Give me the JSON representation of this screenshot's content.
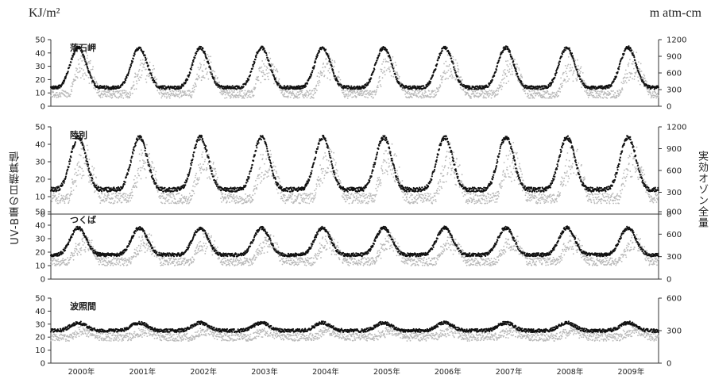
{
  "units": {
    "left": "KJ/m²",
    "right": "m atm-cm"
  },
  "axis_titles": {
    "left": "UV-B量の日積算値",
    "right": "実効オゾン全量"
  },
  "colors": {
    "uvb": "#b8b8b8",
    "ozone": "#111111"
  },
  "chart_data": [
    {
      "type": "scatter",
      "title": "落石岬",
      "xlim": [
        2000,
        2009.95
      ],
      "ylim_left": [
        0,
        50
      ],
      "ylim_right": [
        0,
        1200
      ],
      "left_ticks": [
        "0",
        "10",
        "20",
        "30",
        "40",
        "50"
      ],
      "right_ticks": [
        "0",
        "300",
        "600",
        "900",
        "1200"
      ],
      "series": [
        {
          "axis": "left",
          "description_free": true,
          "baseline": 14,
          "amp": 30,
          "peak": 0.3
        },
        {
          "axis": "right",
          "baseline": 350,
          "amp": 800,
          "peak": 0.5
        }
      ]
    },
    {
      "type": "scatter",
      "title": "陸別",
      "xlim": [
        2000,
        2009.95
      ],
      "ylim_left": [
        0,
        50
      ],
      "ylim_right": [
        0,
        1200
      ],
      "left_ticks": [
        "0",
        "10",
        "20",
        "30",
        "40",
        "50"
      ],
      "right_ticks": [
        "0",
        "300",
        "600",
        "900",
        "1200"
      ],
      "series": [
        {
          "axis": "left",
          "baseline": 14,
          "amp": 30,
          "peak": 0.3
        },
        {
          "axis": "right",
          "baseline": 350,
          "amp": 800,
          "peak": 0.5
        }
      ]
    },
    {
      "type": "scatter",
      "title": "つくば",
      "xlim": [
        2000,
        2009.95
      ],
      "ylim_left": [
        0,
        50
      ],
      "ylim_right": [
        0,
        900
      ],
      "left_ticks": [
        "0",
        "10",
        "20",
        "30",
        "40",
        "50"
      ],
      "right_ticks": [
        "0",
        "300",
        "600",
        "900"
      ],
      "series": [
        {
          "axis": "left",
          "baseline": 18,
          "amp": 20,
          "peak": 0.3
        },
        {
          "axis": "right",
          "baseline": 300,
          "amp": 500,
          "peak": 0.5
        }
      ]
    },
    {
      "type": "scatter",
      "title": "波照間",
      "xlim": [
        2000,
        2009.95
      ],
      "ylim_left": [
        0,
        50
      ],
      "ylim_right": [
        0,
        600
      ],
      "left_ticks": [
        "0",
        "10",
        "20",
        "30",
        "40",
        "50"
      ],
      "right_ticks": [
        "0",
        "300",
        "600"
      ],
      "series": [
        {
          "axis": "left",
          "baseline": 25,
          "amp": 6,
          "peak": 0.35
        },
        {
          "axis": "right",
          "baseline": 250,
          "amp": 300,
          "peak": 0.5
        }
      ]
    }
  ],
  "x_tick_labels": [
    "2000年",
    "2001年",
    "2002年",
    "2003年",
    "2004年",
    "2005年",
    "2006年",
    "2007年",
    "2008年",
    "2009年"
  ]
}
